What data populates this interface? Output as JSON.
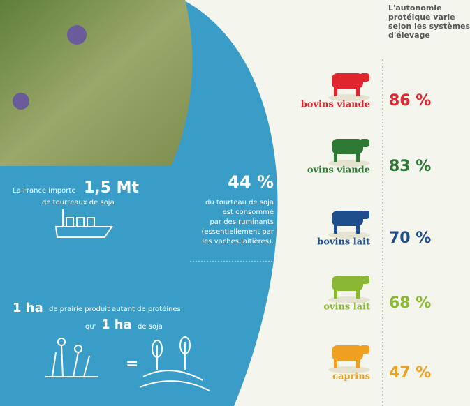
{
  "heading": [
    "L'autonomie",
    "protéique varie",
    "selon les systèmes",
    "d'élevage"
  ],
  "import": {
    "before": "La France importe",
    "amount": "1,5 Mt",
    "after": "de tourteaux de soja"
  },
  "share": {
    "value": "44 %",
    "lines": [
      "du tourteau de soja",
      "est consommé",
      "par des ruminants",
      "(essentiellement par",
      "les vaches laitières)."
    ]
  },
  "prairie": {
    "amount1": "1 ha",
    "line1": "de prairie produit autant de protéines",
    "qu": "qu'",
    "amount2": "1 ha",
    "line2": "de soja",
    "equals": "="
  },
  "rows": [
    {
      "label": "bovins viande",
      "value": "86 %",
      "color": "#e0252e"
    },
    {
      "label": "ovins viande",
      "value": "83 %",
      "color": "#2e7a35"
    },
    {
      "label": "bovins lait",
      "value": "70 %",
      "color": "#1f4e8c"
    },
    {
      "label": "ovins lait",
      "value": "68 %",
      "color": "#8ab832"
    },
    {
      "label": "caprins",
      "value": "47 %",
      "color": "#f0a020"
    }
  ]
}
